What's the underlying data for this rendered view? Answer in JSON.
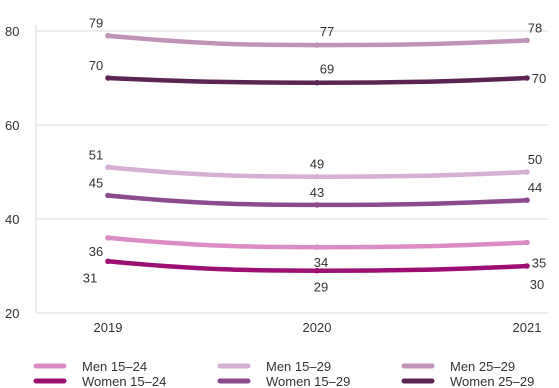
{
  "chart_data": {
    "type": "line",
    "x": [
      "2019",
      "2020",
      "2021"
    ],
    "ylim": [
      20,
      80
    ],
    "yticks": [
      20,
      40,
      60,
      80
    ],
    "grid": "horizontal",
    "legend_position": "bottom",
    "series": [
      {
        "name": "Men 15–29",
        "values": [
          51,
          49,
          50
        ],
        "color": "#d6afd3"
      },
      {
        "name": "Women 15–29",
        "values": [
          45,
          43,
          44
        ],
        "color": "#8e4a8f"
      },
      {
        "name": "Men 25–29",
        "values": [
          79,
          77,
          78
        ],
        "color": "#bf92b6"
      },
      {
        "name": "Women 25–29",
        "values": [
          70,
          69,
          70
        ],
        "color": "#5c2452"
      },
      {
        "name": "Men 15–24",
        "values": [
          36,
          34,
          35
        ],
        "color": "#dc8cc4"
      },
      {
        "name": "Women 15–24",
        "values": [
          31,
          29,
          30
        ],
        "color": "#9c1074"
      }
    ],
    "legend_order": [
      "Men 15–24",
      "Men 15–29",
      "Men 25–29",
      "Women 15–24",
      "Women 15–29",
      "Women 25–29"
    ]
  }
}
